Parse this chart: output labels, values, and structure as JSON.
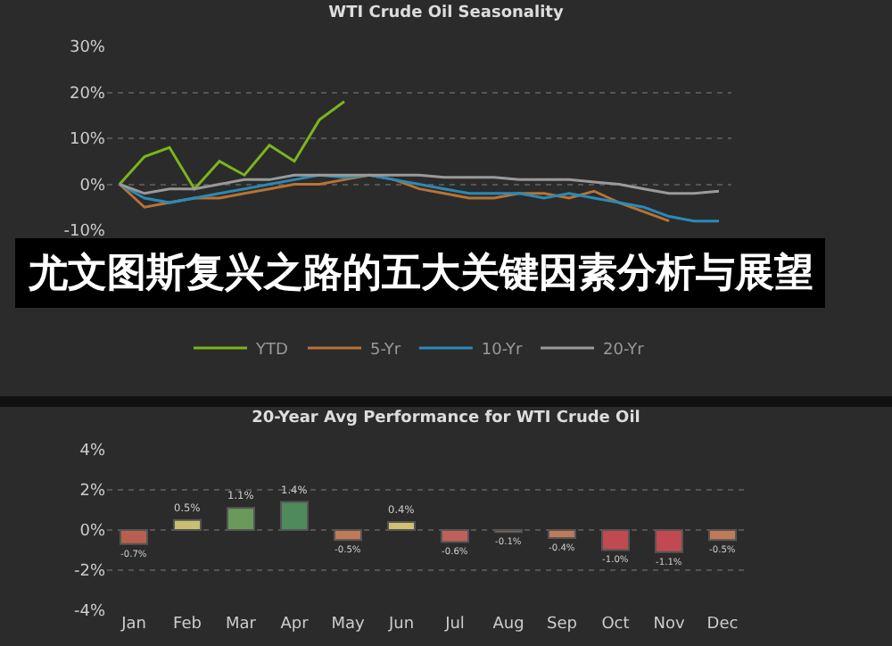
{
  "chart_data": [
    {
      "type": "line",
      "title": "WTI Crude Oil Seasonality",
      "categories": [
        null,
        null,
        null,
        null,
        null,
        null,
        null,
        null,
        null,
        null,
        null,
        null,
        null,
        null,
        null,
        null,
        null,
        null,
        null,
        null,
        null,
        null,
        null,
        null,
        null
      ],
      "series": [
        {
          "name": "YTD",
          "color": "#7ab51d",
          "values": [
            0,
            6,
            8,
            -1,
            5,
            2,
            8.5,
            5,
            14,
            18,
            null,
            null,
            null,
            null,
            null,
            null,
            null,
            null,
            null,
            null,
            null,
            null,
            null,
            null,
            null
          ]
        },
        {
          "name": "5-Yr",
          "color": "#b87333",
          "values": [
            0,
            -5,
            -4,
            -3,
            -3,
            -2,
            -1,
            0,
            0,
            1,
            2,
            1,
            -1,
            -2,
            -3,
            -3,
            -2,
            -2,
            -3,
            -1.5,
            -4,
            -6,
            -8,
            null,
            null
          ]
        },
        {
          "name": "10-Yr",
          "color": "#2a8ab8",
          "values": [
            0,
            -3,
            -4,
            -3,
            -2,
            -1,
            0,
            1,
            2,
            1.5,
            2,
            1,
            0,
            -1,
            -2,
            -2,
            -2,
            -3,
            -2,
            -3,
            -4,
            -5,
            -7,
            -8,
            -8
          ]
        },
        {
          "name": "20-Yr",
          "color": "#9a9a9a",
          "values": [
            0,
            -2,
            -1,
            -1,
            0,
            1,
            1,
            2,
            2,
            2,
            2,
            2,
            2,
            1.5,
            1.5,
            1.5,
            1,
            1,
            1,
            0.5,
            0,
            -1,
            -2,
            -2,
            -1.5
          ]
        }
      ],
      "ylim": [
        -10,
        30
      ],
      "yticks": [
        {
          "value": -10,
          "label": "-10%"
        },
        {
          "value": 0,
          "label": "0%"
        },
        {
          "value": 10,
          "label": "10%"
        },
        {
          "value": 20,
          "label": "20%"
        },
        {
          "value": 30,
          "label": "30%"
        }
      ],
      "grid": true,
      "legend": "bottom",
      "marker": "none",
      "line_style": "solid",
      "annotations": [
        "尤文图斯复兴之路的五大关键因素分析与展望"
      ]
    },
    {
      "type": "bar",
      "title": "20-Year Avg Performance for WTI Crude Oil",
      "categories": [
        "Jan",
        "Feb",
        "Mar",
        "Apr",
        "May",
        "Jun",
        "Jul",
        "Aug",
        "Sep",
        "Oct",
        "Nov",
        "Dec"
      ],
      "values": [
        -0.7,
        0.5,
        1.1,
        1.4,
        -0.5,
        0.4,
        -0.6,
        -0.1,
        -0.4,
        -1.0,
        -1.1,
        -0.5
      ],
      "value_labels": [
        "-0.7%",
        "0.5%",
        "1.1%",
        "1.4%",
        "-0.5%",
        "0.4%",
        "-0.6%",
        "-0.1%",
        "-0.4%",
        "-1.0%",
        "-1.1%",
        "-0.5%"
      ],
      "colors": [
        "#b8604f",
        "#c8c070",
        "#6a9a5a",
        "#4f8a5a",
        "#c07a58",
        "#d0c070",
        "#c0605a",
        "#c88858",
        "#c07a58",
        "#c04a50",
        "#c04a50",
        "#c07a58"
      ],
      "ylim": [
        -4,
        4
      ],
      "yticks": [
        {
          "value": -4,
          "label": "-4%"
        },
        {
          "value": -2,
          "label": "-2%"
        },
        {
          "value": 0,
          "label": "0%"
        },
        {
          "value": 2,
          "label": "2%"
        },
        {
          "value": 4,
          "label": "4%"
        }
      ],
      "grid": true,
      "legend": false
    }
  ]
}
